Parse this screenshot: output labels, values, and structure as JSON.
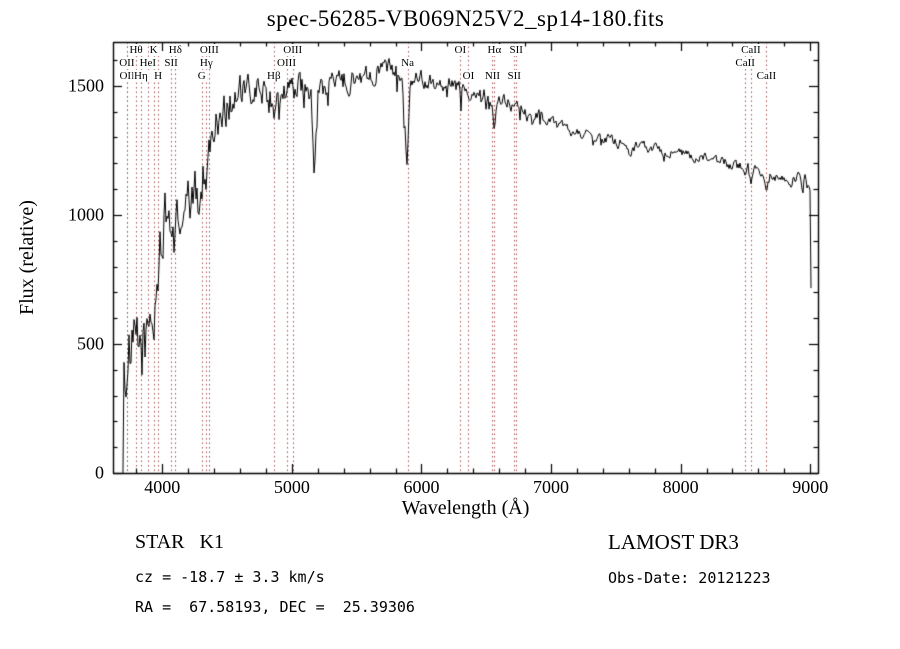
{
  "chart_data": {
    "type": "line",
    "title": "spec-56285-VB069N25V2_sp14-180.fits",
    "xlabel": "Wavelength (Å)",
    "ylabel": "Flux (relative)",
    "xlim": [
      3620,
      9060
    ],
    "ylim": [
      0,
      1670
    ],
    "x_ticks": [
      4000,
      5000,
      6000,
      7000,
      8000,
      9000
    ],
    "y_ticks": [
      0,
      500,
      1000,
      1500
    ],
    "x_minor_step": 200,
    "y_minor_step": 100,
    "grid": false,
    "legend": "none",
    "line_color": "#000000",
    "marker_line_color": "#a85050",
    "series_name": "flux",
    "spectrum_envelope": [
      [
        3697,
        0,
        0
      ],
      [
        3700,
        380,
        130
      ],
      [
        3730,
        430,
        150
      ],
      [
        3760,
        430,
        160
      ],
      [
        3790,
        470,
        160
      ],
      [
        3820,
        470,
        160
      ],
      [
        3850,
        500,
        155
      ],
      [
        3880,
        520,
        150
      ],
      [
        3910,
        550,
        145
      ],
      [
        3933,
        600,
        140
      ],
      [
        3960,
        720,
        135
      ],
      [
        3990,
        900,
        125
      ],
      [
        4020,
        980,
        115
      ],
      [
        4060,
        960,
        115
      ],
      [
        4101,
        930,
        115
      ],
      [
        4140,
        990,
        105
      ],
      [
        4180,
        1010,
        105
      ],
      [
        4220,
        1040,
        105
      ],
      [
        4260,
        1080,
        105
      ],
      [
        4305,
        1090,
        115
      ],
      [
        4340,
        1200,
        100
      ],
      [
        4380,
        1300,
        90
      ],
      [
        4420,
        1360,
        85
      ],
      [
        4460,
        1400,
        80
      ],
      [
        4500,
        1430,
        80
      ],
      [
        4550,
        1450,
        75
      ],
      [
        4600,
        1470,
        72
      ],
      [
        4650,
        1460,
        70
      ],
      [
        4700,
        1470,
        70
      ],
      [
        4750,
        1480,
        68
      ],
      [
        4800,
        1490,
        65
      ],
      [
        4861,
        1420,
        60
      ],
      [
        4900,
        1490,
        60
      ],
      [
        4950,
        1480,
        58
      ],
      [
        5000,
        1490,
        56
      ],
      [
        5050,
        1500,
        55
      ],
      [
        5100,
        1490,
        55
      ],
      [
        5150,
        1450,
        52
      ],
      [
        5172,
        1130,
        35
      ],
      [
        5200,
        1470,
        50
      ],
      [
        5250,
        1490,
        50
      ],
      [
        5300,
        1500,
        50
      ],
      [
        5350,
        1510,
        50
      ],
      [
        5400,
        1520,
        48
      ],
      [
        5450,
        1520,
        46
      ],
      [
        5500,
        1530,
        45
      ],
      [
        5550,
        1540,
        44
      ],
      [
        5600,
        1550,
        43
      ],
      [
        5650,
        1555,
        42
      ],
      [
        5700,
        1560,
        41
      ],
      [
        5750,
        1565,
        40
      ],
      [
        5800,
        1570,
        40
      ],
      [
        5850,
        1560,
        38
      ],
      [
        5890,
        1180,
        22
      ],
      [
        5915,
        1540,
        38
      ],
      [
        5960,
        1535,
        37
      ],
      [
        6000,
        1530,
        36
      ],
      [
        6050,
        1525,
        36
      ],
      [
        6100,
        1520,
        35
      ],
      [
        6150,
        1515,
        35
      ],
      [
        6200,
        1510,
        34
      ],
      [
        6250,
        1500,
        34
      ],
      [
        6300,
        1490,
        33
      ],
      [
        6350,
        1485,
        33
      ],
      [
        6400,
        1480,
        32
      ],
      [
        6450,
        1475,
        31
      ],
      [
        6500,
        1465,
        30
      ],
      [
        6540,
        1450,
        28
      ],
      [
        6563,
        1320,
        18
      ],
      [
        6590,
        1450,
        28
      ],
      [
        6650,
        1440,
        28
      ],
      [
        6700,
        1425,
        27
      ],
      [
        6750,
        1415,
        26
      ],
      [
        6800,
        1400,
        25
      ],
      [
        6860,
        1350,
        22
      ],
      [
        6890,
        1390,
        24
      ],
      [
        6950,
        1375,
        24
      ],
      [
        7000,
        1360,
        24
      ],
      [
        7060,
        1345,
        23
      ],
      [
        7120,
        1335,
        23
      ],
      [
        7180,
        1325,
        22
      ],
      [
        7240,
        1315,
        22
      ],
      [
        7300,
        1308,
        22
      ],
      [
        7360,
        1300,
        21
      ],
      [
        7420,
        1293,
        21
      ],
      [
        7480,
        1286,
        21
      ],
      [
        7540,
        1278,
        21
      ],
      [
        7600,
        1240,
        20
      ],
      [
        7650,
        1265,
        20
      ],
      [
        7700,
        1268,
        20
      ],
      [
        7760,
        1262,
        20
      ],
      [
        7820,
        1256,
        20
      ],
      [
        7880,
        1250,
        20
      ],
      [
        7940,
        1244,
        20
      ],
      [
        8000,
        1238,
        20
      ],
      [
        8060,
        1230,
        20
      ],
      [
        8120,
        1222,
        21
      ],
      [
        8180,
        1215,
        22
      ],
      [
        8240,
        1210,
        23
      ],
      [
        8300,
        1205,
        23
      ],
      [
        8360,
        1198,
        23
      ],
      [
        8420,
        1192,
        23
      ],
      [
        8470,
        1186,
        22
      ],
      [
        8498,
        1140,
        18
      ],
      [
        8520,
        1175,
        20
      ],
      [
        8542,
        1110,
        18
      ],
      [
        8570,
        1165,
        20
      ],
      [
        8620,
        1158,
        20
      ],
      [
        8662,
        1100,
        18
      ],
      [
        8690,
        1150,
        20
      ],
      [
        8750,
        1145,
        22
      ],
      [
        8810,
        1140,
        25
      ],
      [
        8870,
        1135,
        30
      ],
      [
        8930,
        1130,
        38
      ],
      [
        8975,
        1120,
        48
      ],
      [
        9000,
        1050,
        40
      ],
      [
        9008,
        600,
        0
      ]
    ],
    "spectral_lines": [
      {
        "label": "Hθ",
        "wavelength": 3798,
        "row": 0
      },
      {
        "label": "K",
        "wavelength": 3933,
        "row": 0
      },
      {
        "label": "Hδ",
        "wavelength": 4101,
        "row": 0
      },
      {
        "label": "OIII",
        "wavelength": 4363,
        "row": 0
      },
      {
        "label": "OIII",
        "wavelength": 5007,
        "row": 0
      },
      {
        "label": "OI",
        "wavelength": 6300,
        "row": 0
      },
      {
        "label": "Hα",
        "wavelength": 6563,
        "row": 0
      },
      {
        "label": "SII",
        "wavelength": 6731,
        "row": 0
      },
      {
        "label": "CaII",
        "wavelength": 8542,
        "row": 0
      },
      {
        "label": "OII",
        "wavelength": 3727,
        "row": 1
      },
      {
        "label": "HeI",
        "wavelength": 3889,
        "row": 1
      },
      {
        "label": "SII",
        "wavelength": 4068,
        "row": 1
      },
      {
        "label": "Hγ",
        "wavelength": 4340,
        "row": 1
      },
      {
        "label": "OIII",
        "wavelength": 4959,
        "row": 1
      },
      {
        "label": "Na",
        "wavelength": 5893,
        "row": 1
      },
      {
        "label": "CaII",
        "wavelength": 8498,
        "row": 1
      },
      {
        "label": "OII",
        "wavelength": 3729,
        "row": 2
      },
      {
        "label": "Hη",
        "wavelength": 3835,
        "row": 2
      },
      {
        "label": "H",
        "wavelength": 3968,
        "row": 2
      },
      {
        "label": "G",
        "wavelength": 4305,
        "row": 2
      },
      {
        "label": "Hβ",
        "wavelength": 4861,
        "row": 2
      },
      {
        "label": "OI",
        "wavelength": 6363,
        "row": 2
      },
      {
        "label": "NII",
        "wavelength": 6548,
        "row": 2
      },
      {
        "label": "SII",
        "wavelength": 6716,
        "row": 2
      },
      {
        "label": "CaII",
        "wavelength": 8662,
        "row": 2
      }
    ]
  },
  "annotations": {
    "object_type": "STAR   K1",
    "cz": "cz = -18.7 ± 3.3 km/s",
    "coords": "RA =  67.58193, DEC =  25.39306",
    "survey": "LAMOST DR3",
    "obs_date": "Obs-Date: 20121223"
  }
}
